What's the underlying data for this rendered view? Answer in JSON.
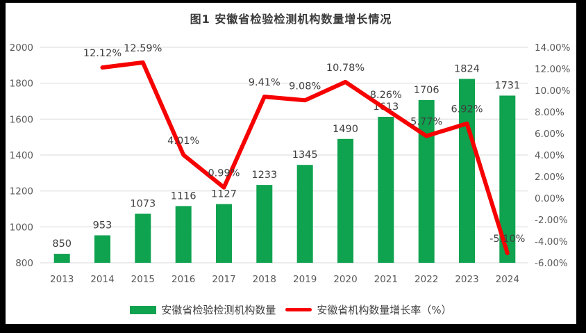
{
  "chart_data": {
    "type": "bar",
    "subtype": "combo-bar-line",
    "title": "图1 安徽省检验检测机构数量增长情况",
    "categories": [
      "2013",
      "2014",
      "2015",
      "2016",
      "2017",
      "2018",
      "2019",
      "2020",
      "2021",
      "2022",
      "2023",
      "2024"
    ],
    "series": [
      {
        "name": "安徽省检验检测机构数量",
        "type": "bar",
        "axis": "left",
        "color": "#0fa24f",
        "values": [
          850,
          953,
          1073,
          1116,
          1127,
          1233,
          1345,
          1490,
          1613,
          1706,
          1824,
          1731
        ],
        "labels": [
          "850",
          "953",
          "1073",
          "1116",
          "1127",
          "1233",
          "1345",
          "1490",
          "1613",
          "1706",
          "1824",
          "1731"
        ]
      },
      {
        "name": "安徽省机构数量增长率（%）",
        "type": "line",
        "axis": "right",
        "color": "#f60000",
        "values": [
          null,
          12.12,
          12.59,
          4.01,
          0.99,
          9.41,
          9.08,
          10.78,
          8.26,
          5.77,
          6.92,
          -5.1
        ],
        "labels": [
          null,
          "12.12%",
          "12.59%",
          "4.01%",
          "0.99%",
          "9.41%",
          "9.08%",
          "10.78%",
          "8.26%",
          "5.77%",
          "6.92%",
          "-5.10%"
        ]
      }
    ],
    "left_axis": {
      "min": 800,
      "max": 2000,
      "ticks": [
        800,
        1000,
        1200,
        1400,
        1600,
        1800,
        2000
      ],
      "tick_labels": [
        "800",
        "1000",
        "1200",
        "1400",
        "1600",
        "1800",
        "2000"
      ]
    },
    "right_axis": {
      "min": -6,
      "max": 14,
      "ticks": [
        -6,
        -4,
        -2,
        0,
        2,
        4,
        6,
        8,
        10,
        12,
        14
      ],
      "tick_labels": [
        "-6.00%",
        "-4.00%",
        "-2.00%",
        "0.00%",
        "2.00%",
        "4.00%",
        "6.00%",
        "8.00%",
        "10.00%",
        "12.00%",
        "14.00%"
      ]
    },
    "grid": true,
    "legend_position": "bottom",
    "colors": {
      "grid": "#d9d9d9",
      "axis_text": "#595959",
      "data_label": "#3f3f3f",
      "title_text": "#3a3a3a",
      "background": "#ffffff",
      "frame": "#000000"
    }
  }
}
